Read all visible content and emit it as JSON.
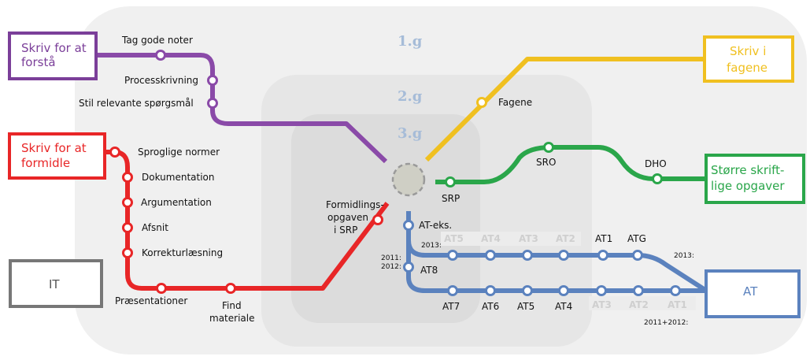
{
  "grades": [
    "1.g",
    "2.g",
    "3.g"
  ],
  "boxes": {
    "purple": {
      "line1": "Skriv for at",
      "line2": "forstå",
      "color": "#7b3f99"
    },
    "red": {
      "line1": "Skriv for at",
      "line2": "formidle",
      "color": "#e82627"
    },
    "it": {
      "label": "IT",
      "color": "#777777"
    },
    "yellow": {
      "line1": "Skriv i",
      "line2": "fagene",
      "color": "#f0c020"
    },
    "green": {
      "line1": "Større skrift-",
      "line2": "lige opgaver",
      "color": "#2aa64a"
    },
    "blue": {
      "label": "AT",
      "color": "#5b82be"
    }
  },
  "purple_stations": [
    "Tag gode noter",
    "Processkrivning",
    "Stil relevante spørgsmål"
  ],
  "red_stations": [
    "Sproglige normer",
    "Dokumentation",
    "Argumentation",
    "Afsnit",
    "Korrekturlæsning",
    "Præsentationer",
    "Find",
    "materiale"
  ],
  "formidling": [
    "Formidlings-",
    "opgaven",
    "i SRP"
  ],
  "yellow_station": "Fagene",
  "green_stations": [
    "SRP",
    "SRO",
    "DHO"
  ],
  "at": {
    "ateks": "AT-eks.",
    "at8": "AT8",
    "year_2013": "2013:",
    "year_2011_line1": "2011:",
    "year_2011_line2": "2012:",
    "right_2013": "2013:",
    "right_2011": "2011+2012:",
    "upper_faded": [
      "AT5",
      "AT4",
      "AT3",
      "AT2"
    ],
    "upper_dark": [
      "AT1",
      "ATG"
    ],
    "lower_dark": [
      "AT7",
      "AT6",
      "AT5",
      "AT4"
    ],
    "lower_faded": [
      "AT3",
      "AT2",
      "AT1"
    ]
  }
}
